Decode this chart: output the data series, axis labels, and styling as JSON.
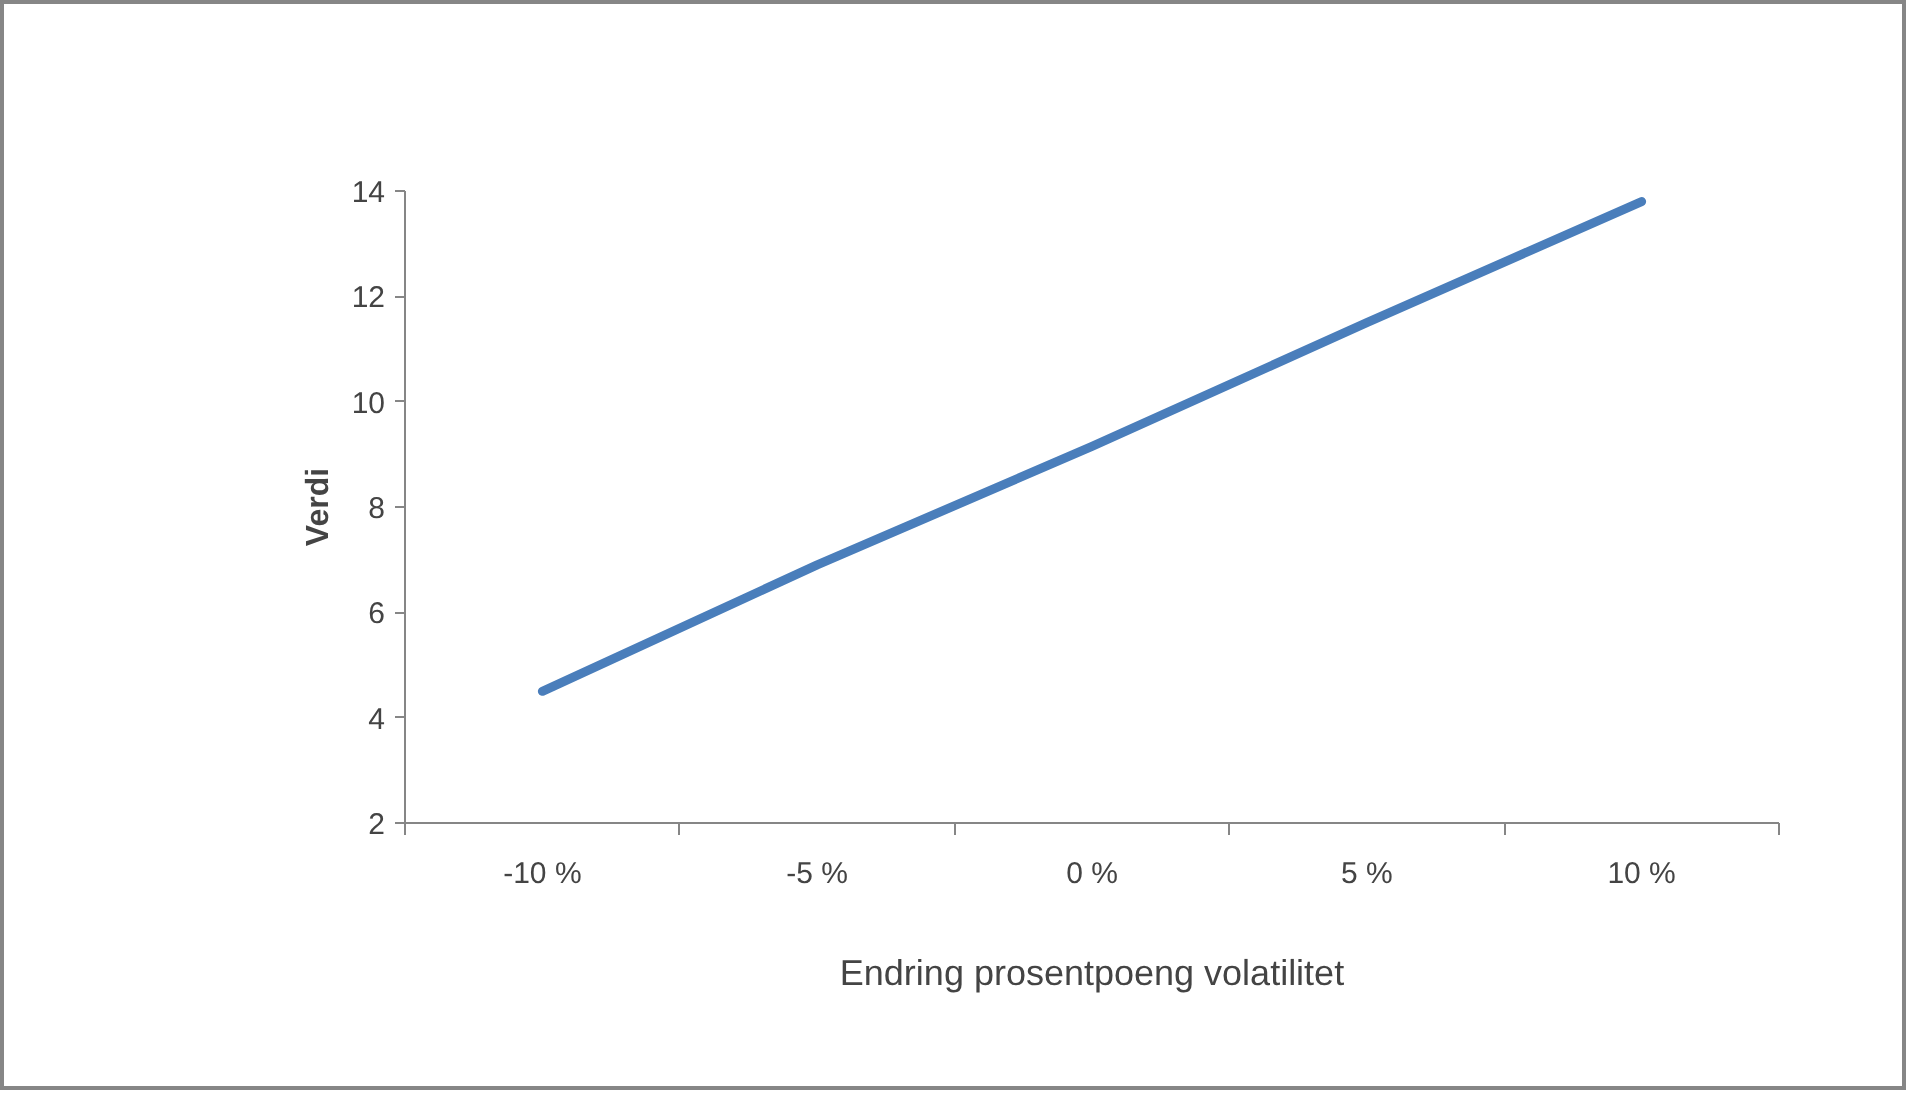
{
  "chart_data": {
    "type": "line",
    "xlabel": "Endring prosentpoeng volatilitet",
    "ylabel": "Verdi",
    "categories": [
      "-10 %",
      "-5 %",
      "0 %",
      "5 %",
      "10 %"
    ],
    "series": [
      {
        "color": "#4a7ebb",
        "values": [
          4.5,
          6.9,
          9.15,
          11.5,
          13.8
        ]
      }
    ],
    "ylim": [
      2,
      14
    ],
    "yticks": [
      2,
      4,
      6,
      8,
      10,
      12,
      14
    ],
    "grid": false,
    "marker": "none",
    "line_style": "solid"
  }
}
